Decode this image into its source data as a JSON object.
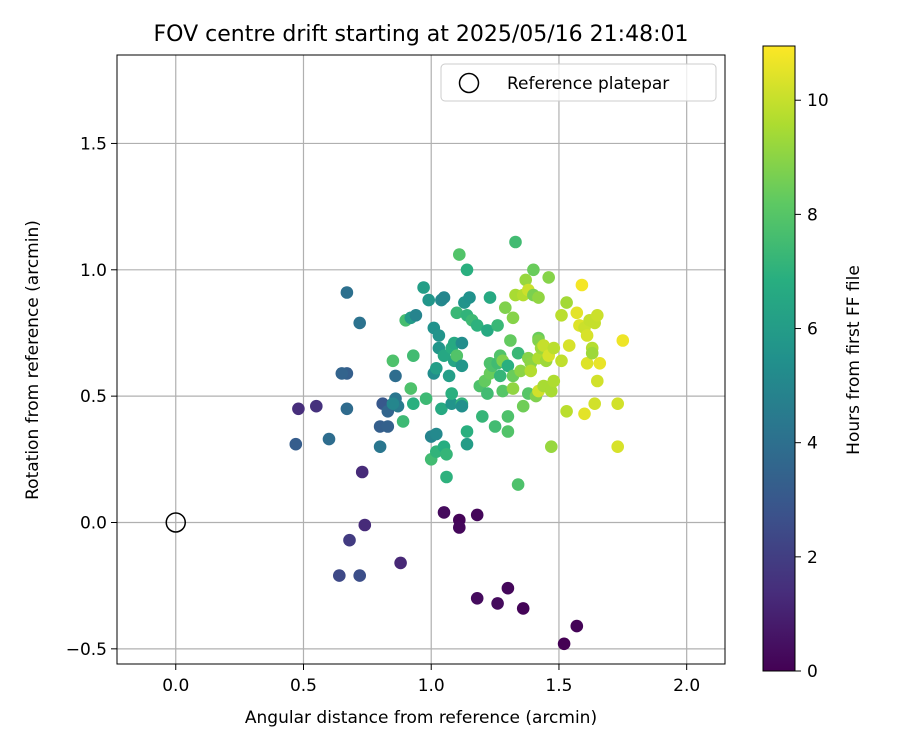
{
  "chart_data": {
    "type": "scatter",
    "title": "FOV centre drift starting at 2025/05/16 21:48:01",
    "xlabel": "Angular distance from reference (arcmin)",
    "ylabel": "Rotation from reference (arcmin)",
    "xlim": [
      -0.23,
      2.15
    ],
    "ylim": [
      -0.56,
      1.85
    ],
    "xticks": [
      0.0,
      0.5,
      1.0,
      1.5,
      2.0
    ],
    "xtick_labels": [
      "0.0",
      "0.5",
      "1.0",
      "1.5",
      "2.0"
    ],
    "yticks": [
      -0.5,
      0.0,
      0.5,
      1.0,
      1.5
    ],
    "ytick_labels": [
      "−0.5",
      "0.0",
      "0.5",
      "1.0",
      "1.5"
    ],
    "grid": true,
    "legend": {
      "position": "top-right",
      "entries": [
        "Reference platepar"
      ]
    },
    "colorbar": {
      "label": "Hours from first FF file",
      "range": [
        0,
        10.95
      ],
      "ticks": [
        0,
        2,
        4,
        6,
        8,
        10
      ],
      "tick_labels": [
        "0",
        "2",
        "4",
        "6",
        "8",
        "10"
      ],
      "colormap": "viridis"
    },
    "reference_point": {
      "x": 0.0,
      "y": 0.0,
      "label": "Reference platepar"
    },
    "points": [
      [
        1.11,
        0.01,
        0.1
      ],
      [
        1.11,
        -0.02,
        0.2
      ],
      [
        1.05,
        0.04,
        0.3
      ],
      [
        1.18,
        0.03,
        0.2
      ],
      [
        1.18,
        -0.3,
        0.3
      ],
      [
        1.3,
        -0.26,
        0.2
      ],
      [
        1.26,
        -0.32,
        0.3
      ],
      [
        1.36,
        -0.34,
        0.1
      ],
      [
        1.57,
        -0.41,
        0.1
      ],
      [
        1.52,
        -0.48,
        0.0
      ],
      [
        0.88,
        -0.16,
        1.2
      ],
      [
        0.73,
        0.2,
        1.3
      ],
      [
        0.74,
        -0.01,
        1.3
      ],
      [
        0.68,
        -0.07,
        1.9
      ],
      [
        0.64,
        -0.21,
        2.4
      ],
      [
        0.72,
        -0.21,
        2.6
      ],
      [
        0.48,
        0.45,
        1.4
      ],
      [
        0.55,
        0.46,
        1.5
      ],
      [
        0.47,
        0.31,
        3.2
      ],
      [
        0.6,
        0.33,
        3.9
      ],
      [
        0.67,
        0.59,
        3.3
      ],
      [
        0.65,
        0.59,
        3.5
      ],
      [
        0.67,
        0.45,
        3.8
      ],
      [
        0.67,
        0.91,
        4.0
      ],
      [
        0.72,
        0.79,
        4.1
      ],
      [
        0.8,
        0.38,
        3.3
      ],
      [
        0.81,
        0.47,
        3.0
      ],
      [
        0.83,
        0.38,
        3.4
      ],
      [
        0.83,
        0.44,
        3.6
      ],
      [
        0.8,
        0.3,
        4.3
      ],
      [
        0.86,
        0.58,
        3.9
      ],
      [
        0.87,
        0.46,
        4.5
      ],
      [
        0.86,
        0.49,
        4.3
      ],
      [
        0.85,
        0.47,
        5.0
      ],
      [
        0.89,
        0.4,
        7.4
      ],
      [
        0.85,
        0.64,
        7.8
      ],
      [
        0.9,
        0.8,
        7.6
      ],
      [
        0.92,
        0.53,
        7.8
      ],
      [
        0.93,
        0.66,
        7.5
      ],
      [
        0.93,
        0.47,
        6.9
      ],
      [
        0.92,
        0.81,
        5.9
      ],
      [
        0.94,
        0.82,
        4.9
      ],
      [
        0.97,
        0.93,
        6.1
      ],
      [
        0.99,
        0.88,
        5.7
      ],
      [
        0.98,
        0.49,
        7.4
      ],
      [
        1.0,
        0.34,
        4.9
      ],
      [
        1.0,
        0.25,
        7.5
      ],
      [
        1.01,
        0.59,
        5.3
      ],
      [
        1.02,
        0.35,
        5.1
      ],
      [
        1.02,
        0.28,
        7.1
      ],
      [
        1.01,
        0.77,
        5.5
      ],
      [
        1.03,
        0.74,
        5.6
      ],
      [
        1.03,
        0.69,
        5.7
      ],
      [
        1.02,
        0.61,
        6.1
      ],
      [
        1.04,
        0.88,
        5.1
      ],
      [
        1.05,
        0.89,
        5.0
      ],
      [
        1.04,
        0.45,
        6.6
      ],
      [
        1.05,
        0.66,
        6.5
      ],
      [
        1.05,
        0.3,
        6.8
      ],
      [
        1.06,
        0.27,
        7.2
      ],
      [
        1.06,
        0.18,
        7.0
      ],
      [
        1.07,
        0.58,
        6.1
      ],
      [
        1.08,
        0.47,
        5.6
      ],
      [
        1.08,
        0.51,
        6.9
      ],
      [
        1.08,
        0.69,
        6.8
      ],
      [
        1.09,
        0.64,
        6.4
      ],
      [
        1.09,
        0.71,
        6.6
      ],
      [
        1.1,
        0.66,
        7.9
      ],
      [
        1.1,
        0.83,
        7.3
      ],
      [
        1.11,
        1.06,
        7.9
      ],
      [
        1.12,
        0.47,
        7.1
      ],
      [
        1.12,
        0.71,
        5.3
      ],
      [
        1.12,
        0.62,
        5.7
      ],
      [
        1.12,
        0.46,
        5.4
      ],
      [
        1.13,
        0.87,
        5.6
      ],
      [
        1.14,
        1.0,
        6.9
      ],
      [
        1.14,
        0.82,
        7.1
      ],
      [
        1.14,
        0.31,
        6.0
      ],
      [
        1.14,
        0.36,
        6.9
      ],
      [
        1.15,
        0.89,
        5.5
      ],
      [
        1.16,
        0.8,
        7.4
      ],
      [
        1.18,
        0.78,
        7.0
      ],
      [
        1.19,
        0.54,
        7.8
      ],
      [
        1.2,
        0.42,
        7.2
      ],
      [
        1.21,
        0.56,
        8.3
      ],
      [
        1.22,
        0.51,
        7.5
      ],
      [
        1.22,
        0.76,
        6.6
      ],
      [
        1.23,
        0.89,
        6.6
      ],
      [
        1.23,
        0.63,
        7.8
      ],
      [
        1.23,
        0.59,
        8.4
      ],
      [
        1.24,
        0.62,
        7.8
      ],
      [
        1.25,
        0.38,
        7.5
      ],
      [
        1.26,
        0.78,
        7.3
      ],
      [
        1.26,
        0.63,
        7.5
      ],
      [
        1.27,
        0.58,
        7.2
      ],
      [
        1.27,
        0.66,
        7.9
      ],
      [
        1.28,
        0.52,
        8.0
      ],
      [
        1.28,
        0.64,
        8.8
      ],
      [
        1.29,
        0.85,
        8.8
      ],
      [
        1.3,
        0.62,
        6.9
      ],
      [
        1.3,
        0.36,
        7.9
      ],
      [
        1.3,
        0.42,
        7.8
      ],
      [
        1.31,
        0.72,
        8.3
      ],
      [
        1.32,
        0.58,
        8.4
      ],
      [
        1.32,
        0.81,
        8.9
      ],
      [
        1.32,
        0.53,
        9.1
      ],
      [
        1.33,
        1.11,
        7.5
      ],
      [
        1.33,
        0.9,
        9.5
      ],
      [
        1.34,
        0.15,
        7.8
      ],
      [
        1.34,
        0.67,
        7.3
      ],
      [
        1.35,
        0.6,
        9.0
      ],
      [
        1.36,
        0.46,
        8.5
      ],
      [
        1.36,
        0.9,
        9.7
      ],
      [
        1.37,
        0.96,
        9.2
      ],
      [
        1.38,
        0.51,
        8.0
      ],
      [
        1.38,
        0.65,
        8.9
      ],
      [
        1.38,
        0.92,
        10.1
      ],
      [
        1.39,
        0.63,
        9.0
      ],
      [
        1.39,
        0.6,
        9.7
      ],
      [
        1.4,
        0.9,
        8.7
      ],
      [
        1.4,
        1.0,
        8.4
      ],
      [
        1.41,
        0.5,
        8.8
      ],
      [
        1.42,
        0.52,
        10.2
      ],
      [
        1.42,
        0.65,
        9.6
      ],
      [
        1.42,
        0.73,
        8.4
      ],
      [
        1.42,
        0.72,
        8.8
      ],
      [
        1.42,
        0.89,
        9.1
      ],
      [
        1.43,
        0.69,
        9.3
      ],
      [
        1.44,
        0.54,
        9.5
      ],
      [
        1.44,
        0.7,
        10.0
      ],
      [
        1.45,
        0.64,
        9.3
      ],
      [
        1.46,
        0.97,
        8.9
      ],
      [
        1.46,
        0.66,
        10.3
      ],
      [
        1.47,
        0.3,
        9.2
      ],
      [
        1.47,
        0.52,
        9.5
      ],
      [
        1.48,
        0.56,
        9.6
      ],
      [
        1.48,
        0.69,
        9.8
      ],
      [
        1.51,
        0.64,
        9.9
      ],
      [
        1.51,
        0.82,
        9.8
      ],
      [
        1.53,
        0.87,
        9.4
      ],
      [
        1.53,
        0.44,
        9.8
      ],
      [
        1.54,
        0.7,
        10.3
      ],
      [
        1.57,
        0.83,
        10.5
      ],
      [
        1.58,
        0.78,
        10.4
      ],
      [
        1.59,
        0.94,
        10.8
      ],
      [
        1.6,
        0.43,
        10.5
      ],
      [
        1.6,
        0.77,
        10.1
      ],
      [
        1.61,
        0.63,
        10.4
      ],
      [
        1.61,
        0.74,
        10.3
      ],
      [
        1.62,
        0.8,
        10.0
      ],
      [
        1.63,
        0.69,
        9.7
      ],
      [
        1.63,
        0.67,
        9.3
      ],
      [
        1.64,
        0.47,
        10.2
      ],
      [
        1.64,
        0.79,
        10.0
      ],
      [
        1.65,
        0.82,
        10.1
      ],
      [
        1.65,
        0.56,
        10.2
      ],
      [
        1.66,
        0.63,
        10.6
      ],
      [
        1.73,
        0.47,
        10.2
      ],
      [
        1.73,
        0.3,
        10.3
      ],
      [
        1.75,
        0.72,
        10.7
      ]
    ]
  }
}
